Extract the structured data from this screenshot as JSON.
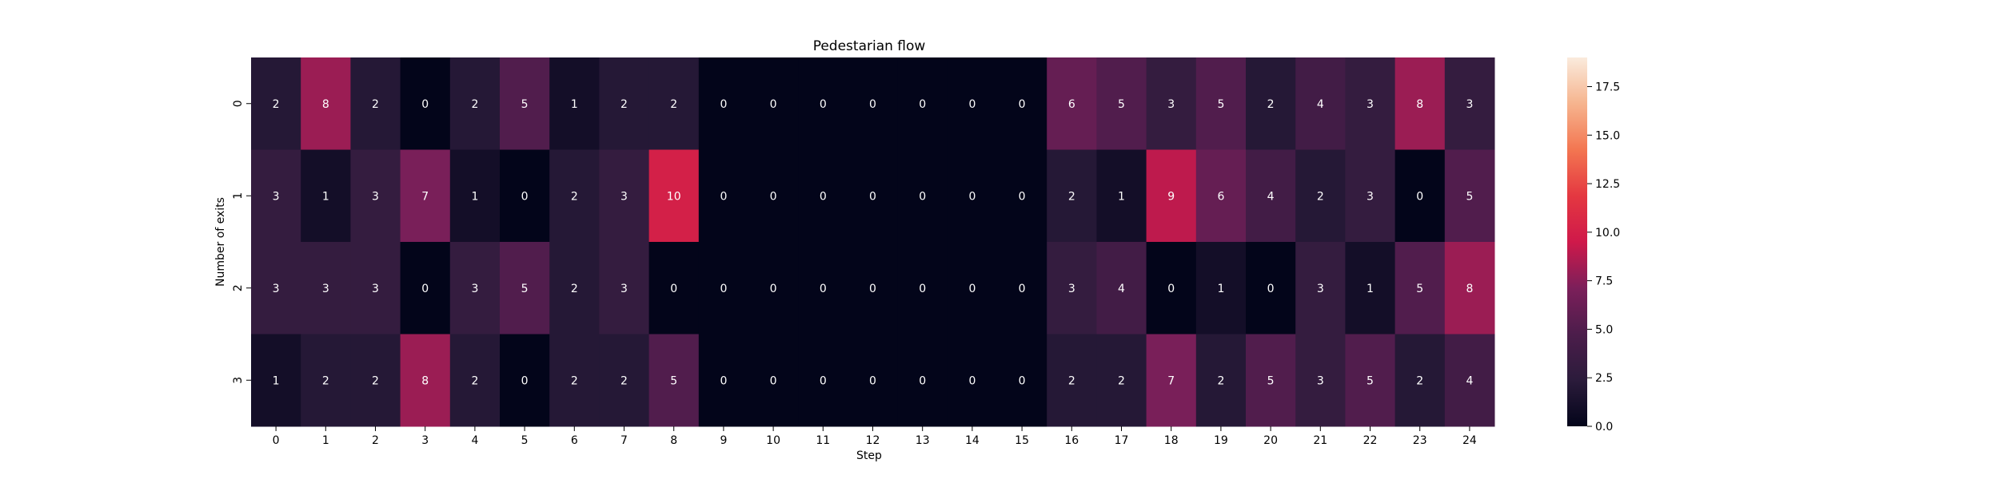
{
  "chart_data": {
    "type": "heatmap",
    "title": "Pedestarian flow",
    "xlabel": "Step",
    "ylabel": "Number of exits",
    "x": [
      "0",
      "1",
      "2",
      "3",
      "4",
      "5",
      "6",
      "7",
      "8",
      "9",
      "10",
      "11",
      "12",
      "13",
      "14",
      "15",
      "16",
      "17",
      "18",
      "19",
      "20",
      "21",
      "22",
      "23",
      "24"
    ],
    "y": [
      "0",
      "1",
      "2",
      "3"
    ],
    "values": [
      [
        2,
        8,
        2,
        0,
        2,
        5,
        1,
        2,
        2,
        0,
        0,
        0,
        0,
        0,
        0,
        0,
        6,
        5,
        3,
        5,
        2,
        4,
        3,
        8,
        3
      ],
      [
        3,
        1,
        3,
        7,
        1,
        0,
        2,
        3,
        10,
        0,
        0,
        0,
        0,
        0,
        0,
        0,
        2,
        1,
        9,
        6,
        4,
        2,
        3,
        0,
        5
      ],
      [
        3,
        3,
        3,
        0,
        3,
        5,
        2,
        3,
        0,
        0,
        0,
        0,
        0,
        0,
        0,
        0,
        3,
        4,
        0,
        1,
        0,
        3,
        1,
        5,
        8
      ],
      [
        1,
        2,
        2,
        8,
        2,
        0,
        2,
        2,
        5,
        0,
        0,
        0,
        0,
        0,
        0,
        0,
        2,
        2,
        7,
        2,
        5,
        3,
        5,
        2,
        4
      ]
    ],
    "colorbar": {
      "vmin": 0,
      "vmax": 19,
      "ticks": [
        "0.0",
        "2.5",
        "5.0",
        "7.5",
        "10.0",
        "12.5",
        "15.0",
        "17.5"
      ],
      "tick_values": [
        0,
        2.5,
        5,
        7.5,
        10,
        12.5,
        15,
        17.5
      ]
    },
    "colormap_stops": [
      {
        "t": 0.0,
        "color": "#03051a"
      },
      {
        "t": 0.125,
        "color": "#2b1b3b"
      },
      {
        "t": 0.25,
        "color": "#4c1d4b"
      },
      {
        "t": 0.375,
        "color": "#7c1f5a"
      },
      {
        "t": 0.5,
        "color": "#cf194a"
      },
      {
        "t": 0.625,
        "color": "#e43841"
      },
      {
        "t": 0.75,
        "color": "#f37651"
      },
      {
        "t": 0.875,
        "color": "#f6b48e"
      },
      {
        "t": 1.0,
        "color": "#faebdd"
      }
    ]
  }
}
